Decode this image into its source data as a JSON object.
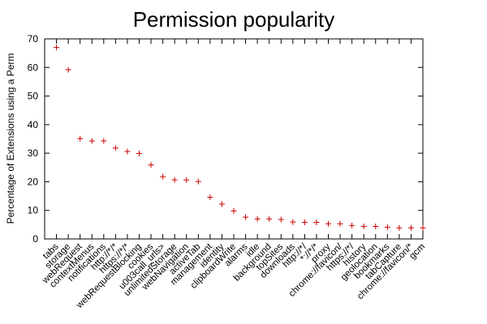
{
  "chart_data": {
    "type": "scatter",
    "title": "Permission popularity",
    "y_label": "Percentage of Extensions using a Perm",
    "categories": [
      "tabs",
      "storage",
      "webRequest",
      "contextMenus",
      "notifications",
      "http://*/*",
      "https://*/*",
      "webRequestBlocking",
      "cookies",
      "u003call_urls>",
      "unlimitedStorage",
      "webNavigation",
      "activeTab",
      "management",
      "identity",
      "clipboardWrite",
      "alarms",
      "idle",
      "background",
      "topSites",
      "downloads",
      "http://*/",
      "*://*/*",
      "proxy",
      "chrome://favicon/",
      "https://*/",
      "history",
      "geolocation",
      "bookmarks",
      "tabCapture",
      "chrome://favicon/*",
      "gcm"
    ],
    "values": [
      67,
      59.2,
      35.1,
      34.3,
      34.3,
      31.8,
      30.6,
      29.9,
      25.9,
      21.8,
      20.7,
      20.6,
      20.1,
      14.6,
      12.2,
      9.8,
      7.6,
      7.0,
      7.0,
      6.8,
      5.9,
      5.8,
      5.8,
      5.3,
      5.3,
      4.7,
      4.4,
      4.4,
      4.1,
      3.9,
      3.9,
      3.9
    ],
    "color": "#cc0000",
    "ylim": [
      0,
      70
    ],
    "yticks": [
      0,
      10,
      20,
      30,
      40,
      50,
      60,
      70
    ]
  }
}
